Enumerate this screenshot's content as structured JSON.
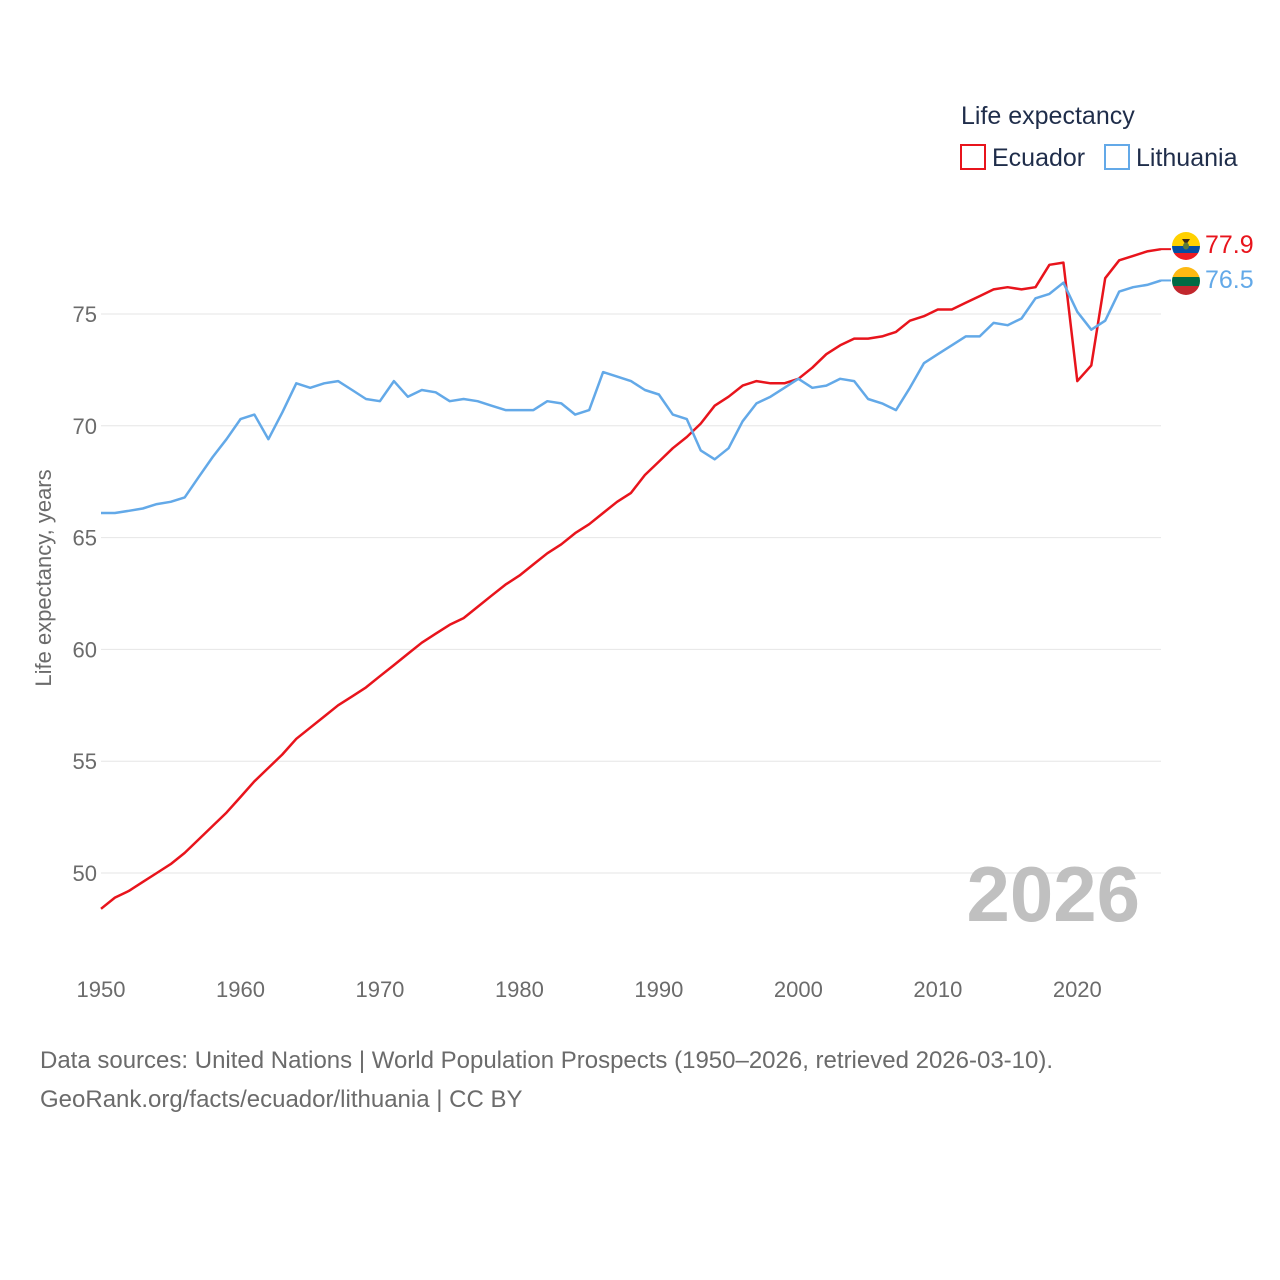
{
  "chart_data": {
    "type": "line",
    "title": "",
    "legend_title": "Life expectancy",
    "ylabel": "Life expectancy, years",
    "xlabel": "",
    "xlim": [
      1950,
      2026
    ],
    "ylim": [
      47.5,
      80
    ],
    "x_ticks": [
      "1950",
      "1960",
      "1970",
      "1980",
      "1990",
      "2000",
      "2010",
      "2020"
    ],
    "y_ticks": [
      "50",
      "55",
      "60",
      "65",
      "70",
      "75"
    ],
    "year_watermark": "2026",
    "x": [
      1950,
      1951,
      1952,
      1953,
      1954,
      1955,
      1956,
      1957,
      1958,
      1959,
      1960,
      1961,
      1962,
      1963,
      1964,
      1965,
      1966,
      1967,
      1968,
      1969,
      1970,
      1971,
      1972,
      1973,
      1974,
      1975,
      1976,
      1977,
      1978,
      1979,
      1980,
      1981,
      1982,
      1983,
      1984,
      1985,
      1986,
      1987,
      1988,
      1989,
      1990,
      1991,
      1992,
      1993,
      1994,
      1995,
      1996,
      1997,
      1998,
      1999,
      2000,
      2001,
      2002,
      2003,
      2004,
      2005,
      2006,
      2007,
      2008,
      2009,
      2010,
      2011,
      2012,
      2013,
      2014,
      2015,
      2016,
      2017,
      2018,
      2019,
      2020,
      2021,
      2022,
      2023,
      2024,
      2025,
      2026
    ],
    "series": [
      {
        "name": "Ecuador",
        "color": "#e8141c",
        "end_label": "77.9",
        "flag": "ecuador-flag",
        "values": [
          48.4,
          48.9,
          49.2,
          49.6,
          50.0,
          50.4,
          50.9,
          51.5,
          52.1,
          52.7,
          53.4,
          54.1,
          54.7,
          55.3,
          56.0,
          56.5,
          57.0,
          57.5,
          57.9,
          58.3,
          58.8,
          59.3,
          59.8,
          60.3,
          60.7,
          61.1,
          61.4,
          61.9,
          62.4,
          62.9,
          63.3,
          63.8,
          64.3,
          64.7,
          65.2,
          65.6,
          66.1,
          66.6,
          67.0,
          67.8,
          68.4,
          69.0,
          69.5,
          70.1,
          70.9,
          71.3,
          71.8,
          72.0,
          71.9,
          71.9,
          72.1,
          72.6,
          73.2,
          73.6,
          73.9,
          73.9,
          74.0,
          74.2,
          74.7,
          74.9,
          75.2,
          75.2,
          75.5,
          75.8,
          76.1,
          76.2,
          76.1,
          76.2,
          77.2,
          77.3,
          72.0,
          72.7,
          76.6,
          77.4,
          77.6,
          77.8,
          77.9
        ]
      },
      {
        "name": "Lithuania",
        "color": "#63a9e8",
        "end_label": "76.5",
        "flag": "lithuania-flag",
        "values": [
          66.1,
          66.1,
          66.2,
          66.3,
          66.5,
          66.6,
          66.8,
          67.7,
          68.6,
          69.4,
          70.3,
          70.5,
          69.4,
          70.6,
          71.9,
          71.7,
          71.9,
          72.0,
          71.6,
          71.2,
          71.1,
          72.0,
          71.3,
          71.6,
          71.5,
          71.1,
          71.2,
          71.1,
          70.9,
          70.7,
          70.7,
          70.7,
          71.1,
          71.0,
          70.5,
          70.7,
          72.4,
          72.2,
          72.0,
          71.6,
          71.4,
          70.5,
          70.3,
          68.9,
          68.5,
          69.0,
          70.2,
          71.0,
          71.3,
          71.7,
          72.1,
          71.7,
          71.8,
          72.1,
          72.0,
          71.2,
          71.0,
          70.7,
          71.7,
          72.8,
          73.2,
          73.6,
          74.0,
          74.0,
          74.6,
          74.5,
          74.8,
          75.7,
          75.9,
          76.4,
          75.1,
          74.3,
          74.7,
          76.0,
          76.2,
          76.3,
          76.5
        ]
      }
    ]
  },
  "footer": {
    "line1": "Data sources: United Nations | World Population Prospects (1950–2026, retrieved 2026-03-10).",
    "line2": "GeoRank.org/facts/ecuador/lithuania | CC BY"
  }
}
